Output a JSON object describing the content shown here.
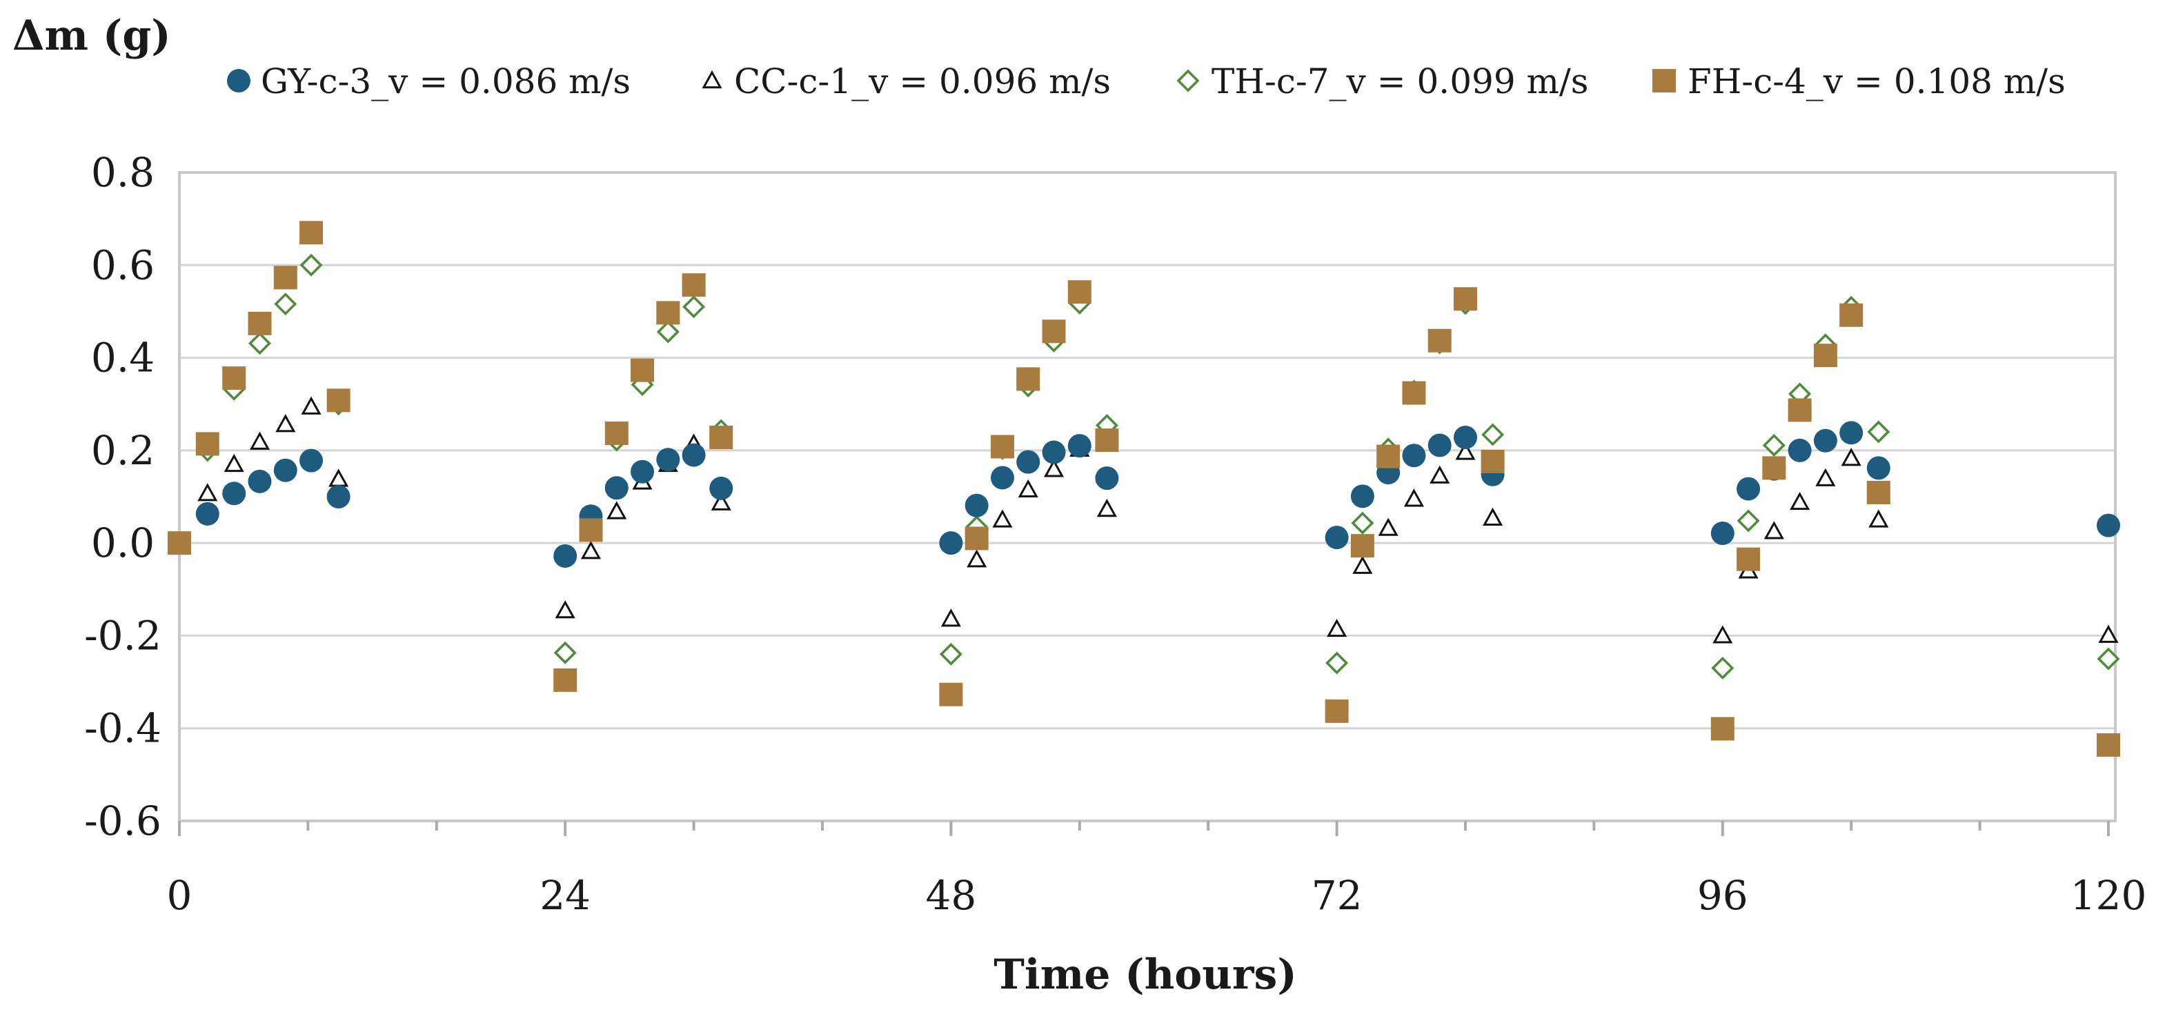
{
  "chart_data": {
    "type": "scatter",
    "title": "",
    "xlabel": "Time (hours)",
    "ylabel": "Δm (g)",
    "xlim": [
      0,
      120
    ],
    "ylim": [
      -0.6,
      0.8
    ],
    "x_ticks": [
      0,
      24,
      48,
      72,
      96,
      120
    ],
    "x_tick_labels": [
      "0",
      "24",
      "48",
      "72",
      "96",
      "120"
    ],
    "x_minor_ticks": [
      8,
      16,
      32,
      40,
      56,
      64,
      80,
      88,
      104,
      112
    ],
    "y_ticks": [
      -0.6,
      -0.4,
      -0.2,
      0.0,
      0.2,
      0.4,
      0.6,
      0.8
    ],
    "y_tick_labels": [
      "-0.6",
      "-0.4",
      "-0.2",
      "0.0",
      "0.2",
      "0.4",
      "0.6",
      "0.8"
    ],
    "grid": "horizontal",
    "legend_position": "top",
    "series": [
      {
        "name": "GY-c-3_v = 0.086 m/s",
        "marker": "circle",
        "color": "#1f5a7f",
        "points": [
          [
            0,
            0
          ],
          [
            1.75,
            0.063
          ],
          [
            3.4,
            0.107
          ],
          [
            5,
            0.133
          ],
          [
            6.6,
            0.157
          ],
          [
            8.2,
            0.178
          ],
          [
            9.9,
            0.1
          ],
          [
            24,
            -0.028
          ],
          [
            25.6,
            0.058
          ],
          [
            27.2,
            0.119
          ],
          [
            28.8,
            0.154
          ],
          [
            30.4,
            0.18
          ],
          [
            32,
            0.19
          ],
          [
            33.7,
            0.118
          ],
          [
            48,
            0
          ],
          [
            49.6,
            0.081
          ],
          [
            51.2,
            0.141
          ],
          [
            52.8,
            0.175
          ],
          [
            54.4,
            0.196
          ],
          [
            56,
            0.21
          ],
          [
            57.7,
            0.14
          ],
          [
            72,
            0.012
          ],
          [
            73.6,
            0.101
          ],
          [
            75.2,
            0.152
          ],
          [
            76.8,
            0.189
          ],
          [
            78.4,
            0.211
          ],
          [
            80,
            0.228
          ],
          [
            81.7,
            0.148
          ],
          [
            96,
            0.021
          ],
          [
            97.6,
            0.117
          ],
          [
            99.2,
            0.16
          ],
          [
            100.8,
            0.2
          ],
          [
            102.4,
            0.221
          ],
          [
            104,
            0.238
          ],
          [
            105.7,
            0.162
          ],
          [
            120,
            0.038
          ]
        ]
      },
      {
        "name": "CC-c-1_v = 0.096 m/s",
        "marker": "triangle",
        "color": "#111111",
        "points": [
          [
            0,
            0
          ],
          [
            1.75,
            0.107
          ],
          [
            3.4,
            0.17
          ],
          [
            5,
            0.218
          ],
          [
            6.6,
            0.256
          ],
          [
            8.2,
            0.294
          ],
          [
            9.9,
            0.138
          ],
          [
            24,
            -0.146
          ],
          [
            25.6,
            -0.018
          ],
          [
            27.2,
            0.068
          ],
          [
            28.8,
            0.132
          ],
          [
            30.4,
            0.17
          ],
          [
            32,
            0.214
          ],
          [
            33.7,
            0.087
          ],
          [
            48,
            -0.164
          ],
          [
            49.6,
            -0.036
          ],
          [
            51.2,
            0.05
          ],
          [
            52.8,
            0.115
          ],
          [
            54.4,
            0.159
          ],
          [
            56,
            0.203
          ],
          [
            57.7,
            0.073
          ],
          [
            72,
            -0.186
          ],
          [
            73.6,
            -0.05
          ],
          [
            75.2,
            0.032
          ],
          [
            76.8,
            0.095
          ],
          [
            78.4,
            0.145
          ],
          [
            80,
            0.196
          ],
          [
            81.7,
            0.054
          ],
          [
            96,
            -0.2
          ],
          [
            97.6,
            -0.06
          ],
          [
            99.2,
            0.025
          ],
          [
            100.8,
            0.088
          ],
          [
            102.4,
            0.139
          ],
          [
            104,
            0.183
          ],
          [
            105.7,
            0.05
          ],
          [
            120,
            -0.199
          ]
        ]
      },
      {
        "name": "TH-c-7_v = 0.099 m/s",
        "marker": "diamond",
        "color": "#4e8a3a",
        "points": [
          [
            0,
            0
          ],
          [
            1.75,
            0.2
          ],
          [
            3.4,
            0.332
          ],
          [
            5,
            0.431
          ],
          [
            6.6,
            0.516
          ],
          [
            8.2,
            0.6
          ],
          [
            9.9,
            0.3
          ],
          [
            24,
            -0.237
          ],
          [
            25.6,
            0.034
          ],
          [
            27.2,
            0.222
          ],
          [
            28.8,
            0.342
          ],
          [
            30.4,
            0.456
          ],
          [
            32,
            0.51
          ],
          [
            33.7,
            0.243
          ],
          [
            48,
            -0.24
          ],
          [
            49.6,
            0.035
          ],
          [
            51.2,
            0.204
          ],
          [
            52.8,
            0.339
          ],
          [
            54.4,
            0.436
          ],
          [
            56,
            0.518
          ],
          [
            57.7,
            0.254
          ],
          [
            72,
            -0.259
          ],
          [
            73.6,
            0.043
          ],
          [
            75.2,
            0.203
          ],
          [
            76.8,
            0.328
          ],
          [
            78.4,
            0.432
          ],
          [
            80,
            0.517
          ],
          [
            81.7,
            0.234
          ],
          [
            96,
            -0.27
          ],
          [
            97.6,
            0.048
          ],
          [
            99.2,
            0.211
          ],
          [
            100.8,
            0.322
          ],
          [
            102.4,
            0.428
          ],
          [
            104,
            0.509
          ],
          [
            105.7,
            0.24
          ],
          [
            120,
            -0.25
          ]
        ]
      },
      {
        "name": "FH-c-4_v = 0.108 m/s",
        "marker": "square",
        "color": "#a87c3f",
        "points": [
          [
            0,
            0
          ],
          [
            1.75,
            0.214
          ],
          [
            3.4,
            0.356
          ],
          [
            5,
            0.474
          ],
          [
            6.6,
            0.573
          ],
          [
            8.2,
            0.67
          ],
          [
            9.9,
            0.308
          ],
          [
            24,
            -0.296
          ],
          [
            25.6,
            0.028
          ],
          [
            27.2,
            0.237
          ],
          [
            28.8,
            0.373
          ],
          [
            30.4,
            0.497
          ],
          [
            32,
            0.557
          ],
          [
            33.7,
            0.228
          ],
          [
            48,
            -0.327
          ],
          [
            49.6,
            0.01
          ],
          [
            51.2,
            0.208
          ],
          [
            52.8,
            0.354
          ],
          [
            54.4,
            0.457
          ],
          [
            56,
            0.542
          ],
          [
            57.7,
            0.222
          ],
          [
            72,
            -0.363
          ],
          [
            73.6,
            -0.006
          ],
          [
            75.2,
            0.187
          ],
          [
            76.8,
            0.324
          ],
          [
            78.4,
            0.437
          ],
          [
            80,
            0.527
          ],
          [
            81.7,
            0.176
          ],
          [
            96,
            -0.401
          ],
          [
            97.6,
            -0.035
          ],
          [
            99.2,
            0.162
          ],
          [
            100.8,
            0.287
          ],
          [
            102.4,
            0.405
          ],
          [
            104,
            0.492
          ],
          [
            105.7,
            0.109
          ],
          [
            120,
            -0.436
          ]
        ]
      }
    ]
  }
}
